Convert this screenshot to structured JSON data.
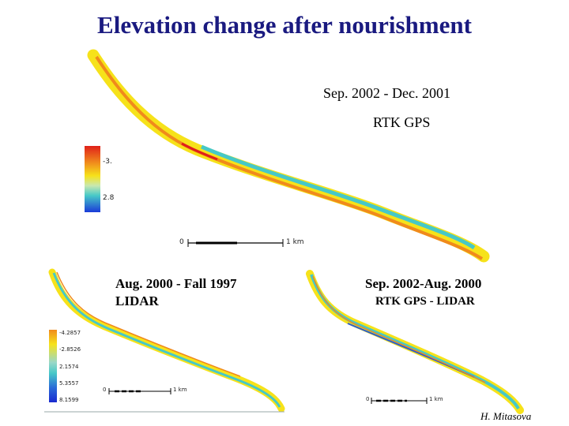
{
  "page": {
    "title": "Elevation change after nourishment",
    "credit": "H. Mitasova"
  },
  "panels": {
    "top": {
      "caption_line1": "Sep. 2002 - Dec. 2001",
      "caption_line2": "RTK GPS",
      "legend_high": "-3.",
      "legend_low": "2.8",
      "scale_start": "0",
      "scale_end": "1 km"
    },
    "left": {
      "caption_line1": "Aug. 2000 -  Fall 1997",
      "caption_line2": "LIDAR",
      "legend_values": [
        "-4.2857",
        "-2.8526",
        "2.1574",
        "5.3557",
        "8.1599"
      ],
      "scale_start": "0",
      "scale_end": "1 km"
    },
    "right": {
      "caption_line1": "Sep. 2002-Aug. 2000",
      "caption_line2": "RTK GPS - LIDAR",
      "scale_start": "0",
      "scale_end": "1 km"
    }
  },
  "colors": {
    "title": "#1a1a80",
    "high": "#e0201a",
    "mid_orange": "#f08a1c",
    "mid_yellow": "#f6e21a",
    "low_cyan": "#46c8c8",
    "low_blue": "#1a3ad8"
  }
}
